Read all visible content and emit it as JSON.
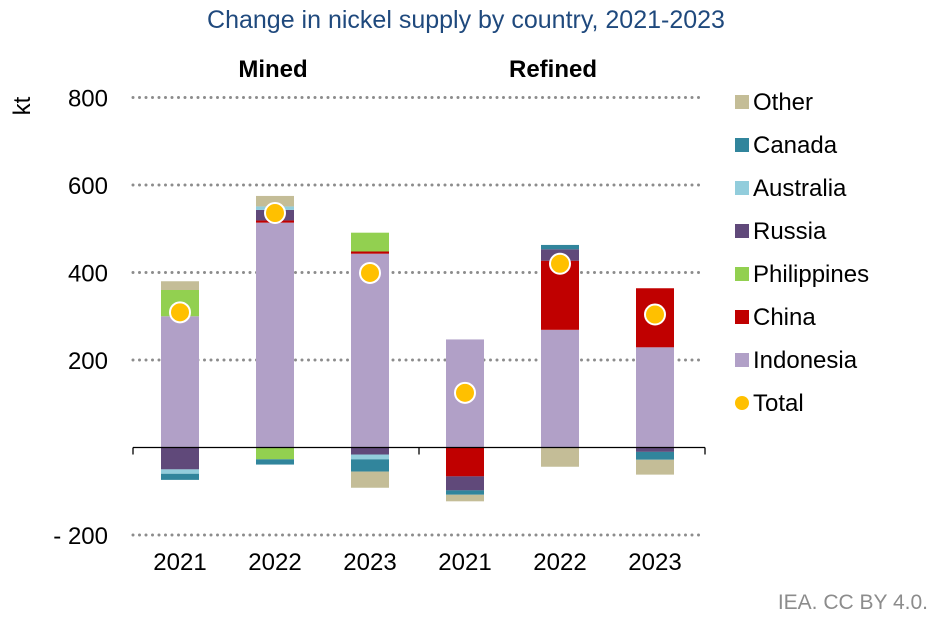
{
  "chart_data": {
    "type": "bar",
    "stacked": true,
    "title": "Change in nickel supply by country, 2021-2023",
    "ylabel": "kt",
    "ylim": [
      -200,
      800
    ],
    "yticks": [
      800,
      600,
      400,
      200,
      -200
    ],
    "ytick_labels": [
      "800",
      "600",
      "400",
      "200",
      "- 200"
    ],
    "grid": "horizontal dotted",
    "groups": [
      {
        "label": "Mined",
        "categories": [
          "2021",
          "2022",
          "2023"
        ]
      },
      {
        "label": "Refined",
        "categories": [
          "2021",
          "2022",
          "2023"
        ]
      }
    ],
    "categories": [
      "2021",
      "2022",
      "2023",
      "2021",
      "2022",
      "2023"
    ],
    "series": [
      {
        "name": "Indonesia",
        "color": "#b1a0c7",
        "values": [
          300,
          514,
          443,
          247,
          269,
          229
        ]
      },
      {
        "name": "China",
        "color": "#c00000",
        "values": [
          0,
          5,
          5,
          -66,
          158,
          135
        ]
      },
      {
        "name": "Philippines",
        "color": "#92d050",
        "values": [
          60,
          -27,
          43,
          0,
          0,
          0
        ]
      },
      {
        "name": "Russia",
        "color": "#60497a",
        "values": [
          -50,
          24,
          -16,
          -32,
          26,
          -10
        ]
      },
      {
        "name": "Australia",
        "color": "#92cddc",
        "values": [
          -10,
          8,
          -11,
          0,
          0,
          0
        ]
      },
      {
        "name": "Canada",
        "color": "#31859c",
        "values": [
          -14,
          -12,
          -28,
          -10,
          10,
          -18
        ]
      },
      {
        "name": "Other",
        "color": "#c4bd97",
        "values": [
          20,
          24,
          -37,
          -15,
          -44,
          -34
        ]
      }
    ],
    "total": {
      "name": "Total",
      "color": "#ffc000",
      "values": [
        309,
        536,
        399,
        125,
        420,
        304
      ]
    },
    "legend_order": [
      "Other",
      "Canada",
      "Australia",
      "Russia",
      "Philippines",
      "China",
      "Indonesia",
      "Total"
    ],
    "legend_placement": "right"
  },
  "credit": "IEA. CC BY 4.0."
}
